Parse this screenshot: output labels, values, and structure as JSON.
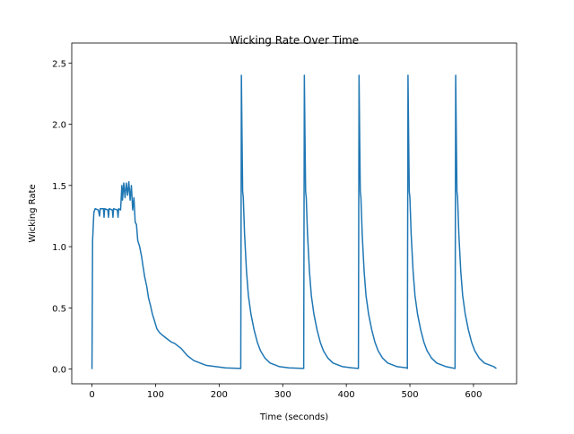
{
  "chart_data": {
    "type": "line",
    "title": "Wicking Rate Over Time",
    "xlabel": "Time (seconds)",
    "ylabel": "Wicking Rate",
    "xlim": [
      -31.8,
      667.8
    ],
    "ylim": [
      -0.12,
      2.59
    ],
    "xticks": [
      0,
      100,
      200,
      300,
      400,
      500,
      600
    ],
    "yticks": [
      {
        "value": 0,
        "label": "0.0"
      },
      {
        "value": 0.5,
        "label": "0.5"
      },
      {
        "value": 1,
        "label": "1.0"
      },
      {
        "value": 1.5,
        "label": "1.5"
      },
      {
        "value": 2,
        "label": "2.0"
      },
      {
        "value": 2.5,
        "label": "2.5"
      }
    ],
    "series": [
      {
        "color": "#1f77b4",
        "x": [
          0,
          1,
          3,
          5,
          10,
          12,
          13,
          18,
          19,
          20,
          25,
          26,
          27,
          32,
          33,
          34,
          40,
          41,
          42,
          45,
          47,
          48,
          50,
          52,
          54,
          56,
          58,
          60,
          62,
          64,
          66,
          68,
          70,
          72,
          75,
          78,
          80,
          83,
          86,
          89,
          92,
          95,
          98,
          102,
          106,
          110,
          115,
          120,
          125,
          130,
          135,
          140,
          145,
          150,
          160,
          170,
          180,
          195,
          210,
          234,
          235,
          236,
          237,
          238,
          240,
          243,
          246,
          250,
          255,
          260,
          265,
          272,
          280,
          295,
          310,
          333,
          334,
          335,
          336,
          337,
          339,
          342,
          345,
          349,
          354,
          359,
          364,
          371,
          379,
          394,
          409,
          419,
          420,
          421,
          422,
          423,
          425,
          428,
          431,
          435,
          440,
          445,
          450,
          457,
          465,
          480,
          495,
          496,
          497,
          498,
          499,
          500,
          502,
          505,
          508,
          512,
          517,
          522,
          527,
          534,
          542,
          557,
          571,
          572,
          573,
          574,
          575,
          577,
          580,
          583,
          587,
          592,
          597,
          602,
          609,
          617,
          632,
          636
        ],
        "values": [
          0,
          1.05,
          1.28,
          1.31,
          1.3,
          1.25,
          1.31,
          1.31,
          1.24,
          1.31,
          1.3,
          1.24,
          1.31,
          1.3,
          1.24,
          1.31,
          1.3,
          1.24,
          1.31,
          1.3,
          1.5,
          1.38,
          1.52,
          1.4,
          1.52,
          1.42,
          1.53,
          1.38,
          1.5,
          1.3,
          1.4,
          1.2,
          1.18,
          1.05,
          1.0,
          0.92,
          0.85,
          0.75,
          0.68,
          0.58,
          0.52,
          0.45,
          0.4,
          0.33,
          0.3,
          0.28,
          0.26,
          0.24,
          0.22,
          0.21,
          0.19,
          0.17,
          0.14,
          0.11,
          0.07,
          0.05,
          0.03,
          0.02,
          0.01,
          0.005,
          2.4,
          1.9,
          1.45,
          1.4,
          1.1,
          0.8,
          0.6,
          0.45,
          0.32,
          0.22,
          0.15,
          0.09,
          0.05,
          0.02,
          0.01,
          0.005,
          2.4,
          1.9,
          1.45,
          1.4,
          1.1,
          0.8,
          0.6,
          0.45,
          0.32,
          0.22,
          0.15,
          0.09,
          0.05,
          0.02,
          0.01,
          0.005,
          2.4,
          1.9,
          1.45,
          1.4,
          1.1,
          0.8,
          0.6,
          0.45,
          0.32,
          0.22,
          0.15,
          0.09,
          0.05,
          0.02,
          0.01,
          0.005,
          2.4,
          1.9,
          1.45,
          1.4,
          1.1,
          0.8,
          0.6,
          0.45,
          0.32,
          0.22,
          0.15,
          0.09,
          0.05,
          0.02,
          0.005,
          2.4,
          1.9,
          1.45,
          1.4,
          1.1,
          0.8,
          0.6,
          0.45,
          0.32,
          0.22,
          0.15,
          0.09,
          0.05,
          0.02,
          0.005
        ]
      }
    ]
  }
}
